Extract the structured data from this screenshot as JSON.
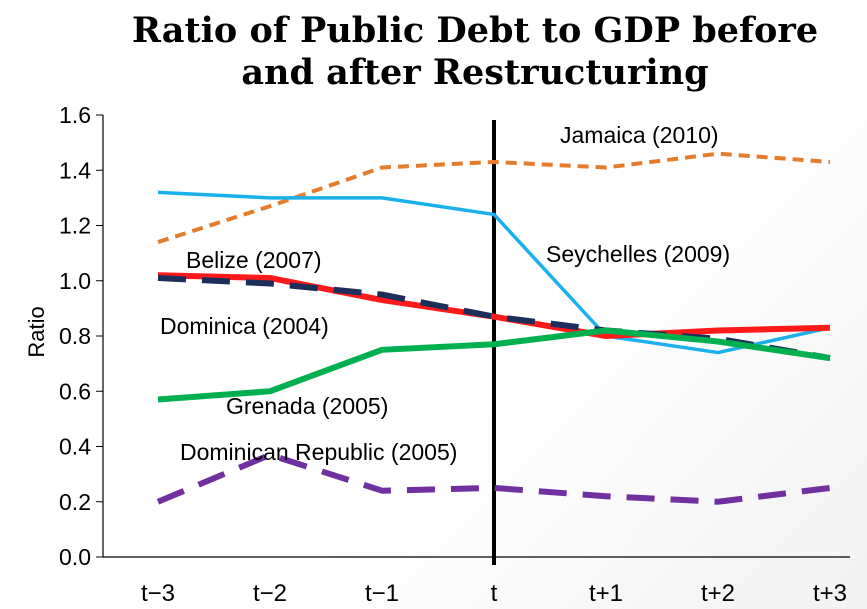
{
  "chart_data": {
    "type": "line",
    "title_line1": "Ratio of Public Debt to GDP before",
    "title_line2": "and after Restructuring",
    "xlabel": "",
    "ylabel": "Ratio",
    "ylim": [
      0,
      1.6
    ],
    "yticks": [
      "0.0",
      "0.2",
      "0.4",
      "0.6",
      "0.8",
      "1.0",
      "1.2",
      "1.4",
      "1.6"
    ],
    "categories": [
      "t−3",
      "t−2",
      "t−1",
      "t",
      "t+1",
      "t+2",
      "t+3"
    ],
    "reference_line_at": "t",
    "grid": false,
    "series": [
      {
        "name": "Jamaica (2010)",
        "color": "#e47c2c",
        "style": "dashed",
        "values": [
          1.14,
          1.27,
          1.41,
          1.43,
          1.41,
          1.46,
          1.43
        ]
      },
      {
        "name": "Seychelles (2009)",
        "color": "#1ab0ec",
        "style": "solid",
        "values": [
          1.32,
          1.3,
          1.3,
          1.24,
          0.8,
          0.74,
          0.83
        ]
      },
      {
        "name": "Belize (2007)",
        "color": "#ff1a1a",
        "style": "solid-thick",
        "values": [
          1.02,
          1.01,
          0.93,
          0.87,
          0.8,
          0.82,
          0.83
        ]
      },
      {
        "name": "Dominica (2004)",
        "color": "#1c2f5c",
        "style": "dashed-thick",
        "values": [
          1.01,
          0.99,
          0.95,
          0.87,
          0.82,
          0.79,
          0.72
        ]
      },
      {
        "name": "Grenada (2005)",
        "color": "#00b050",
        "style": "solid-thick",
        "values": [
          0.57,
          0.6,
          0.75,
          0.77,
          0.82,
          0.78,
          0.72
        ]
      },
      {
        "name": "Dominican Republic (2005)",
        "color": "#7030a0",
        "style": "dashed-thick",
        "values": [
          0.2,
          0.37,
          0.24,
          0.25,
          0.22,
          0.2,
          0.25
        ]
      }
    ]
  }
}
